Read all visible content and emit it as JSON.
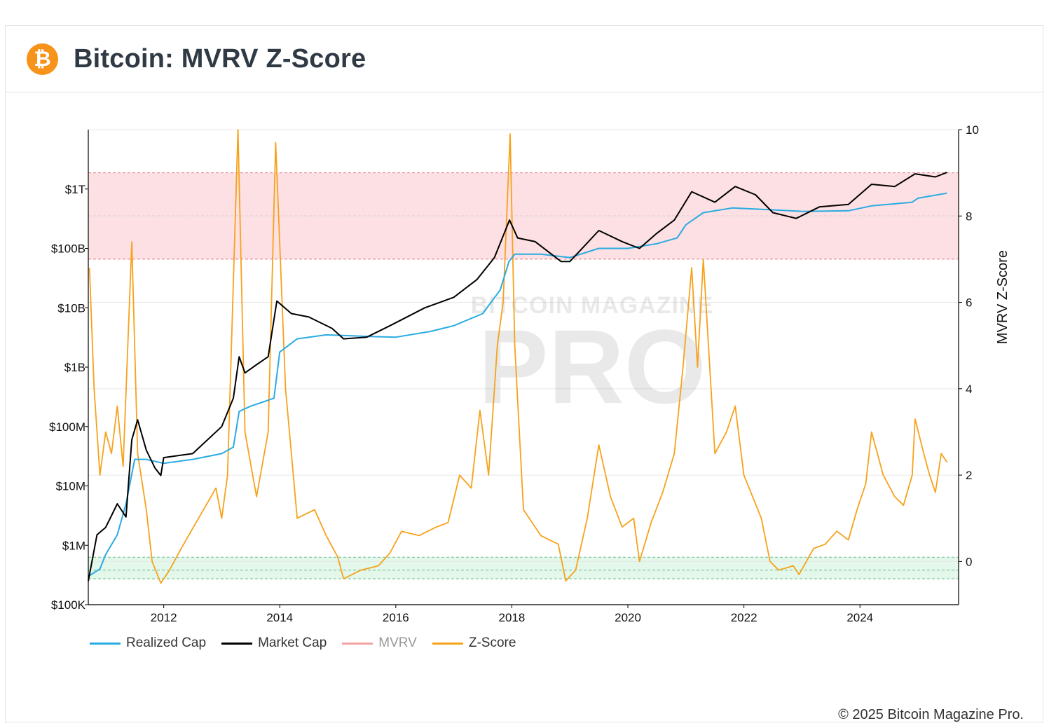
{
  "header": {
    "title": "Bitcoin: MVRV Z-Score",
    "logo_glyph": "₿",
    "logo_icon": "bitcoin-logo-icon"
  },
  "watermark": {
    "line1": "BITCOIN MAGAZINE",
    "line2": "PRO"
  },
  "footer": {
    "copyright": "© 2025 Bitcoin Magazine Pro."
  },
  "colors": {
    "realized": "#29abe2",
    "market": "#000000",
    "mvrv": "#f4a3a3",
    "zscore": "#f7a21b",
    "red_zone": "#fde0e3",
    "green_zone": "#e3f7ea",
    "accent": "#f7931a"
  },
  "chart_data": {
    "type": "line",
    "title": "Bitcoin: MVRV Z-Score",
    "xlabel": "",
    "y_left_label": "",
    "y_right_label": "MVRV Z-Score",
    "x_range": [
      2010.7,
      2025.7
    ],
    "x_ticks": [
      "2012",
      "2014",
      "2016",
      "2018",
      "2020",
      "2022",
      "2024"
    ],
    "y_left_scale": "log",
    "y_left_range": [
      100000,
      10000000000000
    ],
    "y_left_ticks": [
      {
        "label": "$100K",
        "value": 100000
      },
      {
        "label": "$1M",
        "value": 1000000
      },
      {
        "label": "$10M",
        "value": 10000000
      },
      {
        "label": "$100M",
        "value": 100000000
      },
      {
        "label": "$1B",
        "value": 1000000000
      },
      {
        "label": "$10B",
        "value": 10000000000
      },
      {
        "label": "$100B",
        "value": 100000000000
      },
      {
        "label": "$1T",
        "value": 1000000000000
      }
    ],
    "y_right_range": [
      -1,
      10
    ],
    "y_right_ticks": [
      0,
      2,
      4,
      6,
      8,
      10
    ],
    "zones": {
      "red": {
        "from": 7,
        "to": 9,
        "lines": [
          7,
          8,
          9
        ]
      },
      "green": {
        "from": -0.4,
        "to": 0.1,
        "lines": [
          -0.4,
          -0.2,
          0.1
        ]
      }
    },
    "legend": [
      "Realized Cap",
      "Market Cap",
      "MVRV",
      "Z-Score"
    ],
    "legend_placement": "bottom-left",
    "series": [
      {
        "name": "Realized Cap",
        "axis": "left",
        "points": [
          [
            2010.7,
            300000
          ],
          [
            2010.9,
            400000
          ],
          [
            2011.0,
            700000
          ],
          [
            2011.2,
            1500000
          ],
          [
            2011.35,
            5000000
          ],
          [
            2011.5,
            28000000
          ],
          [
            2011.7,
            28000000
          ],
          [
            2012.0,
            24000000
          ],
          [
            2012.5,
            28000000
          ],
          [
            2013.0,
            35000000
          ],
          [
            2013.2,
            45000000
          ],
          [
            2013.3,
            180000000
          ],
          [
            2013.5,
            220000000
          ],
          [
            2013.9,
            300000000
          ],
          [
            2014.0,
            1800000000
          ],
          [
            2014.3,
            3000000000
          ],
          [
            2014.8,
            3500000000
          ],
          [
            2015.5,
            3300000000
          ],
          [
            2016.0,
            3200000000
          ],
          [
            2016.6,
            4000000000
          ],
          [
            2017.0,
            5000000000
          ],
          [
            2017.5,
            8000000000
          ],
          [
            2017.8,
            20000000000
          ],
          [
            2017.95,
            60000000000
          ],
          [
            2018.05,
            80000000000
          ],
          [
            2018.5,
            80000000000
          ],
          [
            2019.0,
            70000000000
          ],
          [
            2019.5,
            100000000000
          ],
          [
            2020.0,
            100000000000
          ],
          [
            2020.5,
            120000000000
          ],
          [
            2020.85,
            150000000000
          ],
          [
            2021.0,
            250000000000
          ],
          [
            2021.3,
            400000000000
          ],
          [
            2021.8,
            480000000000
          ],
          [
            2022.4,
            450000000000
          ],
          [
            2023.0,
            420000000000
          ],
          [
            2023.8,
            430000000000
          ],
          [
            2024.2,
            520000000000
          ],
          [
            2024.9,
            600000000000
          ],
          [
            2025.0,
            700000000000
          ],
          [
            2025.5,
            850000000000
          ]
        ]
      },
      {
        "name": "Market Cap",
        "axis": "left",
        "points": [
          [
            2010.7,
            250000
          ],
          [
            2010.85,
            1500000
          ],
          [
            2011.0,
            2000000
          ],
          [
            2011.2,
            5000000
          ],
          [
            2011.35,
            3000000
          ],
          [
            2011.45,
            60000000
          ],
          [
            2011.55,
            130000000
          ],
          [
            2011.7,
            40000000
          ],
          [
            2011.85,
            20000000
          ],
          [
            2011.95,
            15000000
          ],
          [
            2012.0,
            30000000
          ],
          [
            2012.5,
            35000000
          ],
          [
            2013.0,
            100000000
          ],
          [
            2013.2,
            300000000
          ],
          [
            2013.3,
            1500000000
          ],
          [
            2013.4,
            800000000
          ],
          [
            2013.6,
            1100000000
          ],
          [
            2013.8,
            1500000000
          ],
          [
            2013.95,
            13000000000
          ],
          [
            2014.2,
            8000000000
          ],
          [
            2014.5,
            7000000000
          ],
          [
            2014.9,
            4500000000
          ],
          [
            2015.1,
            3000000000
          ],
          [
            2015.5,
            3200000000
          ],
          [
            2015.9,
            5000000000
          ],
          [
            2016.5,
            10000000000
          ],
          [
            2017.0,
            15000000000
          ],
          [
            2017.4,
            30000000000
          ],
          [
            2017.7,
            70000000000
          ],
          [
            2017.96,
            300000000000
          ],
          [
            2018.1,
            150000000000
          ],
          [
            2018.4,
            130000000000
          ],
          [
            2018.85,
            60000000000
          ],
          [
            2019.0,
            60000000000
          ],
          [
            2019.5,
            200000000000
          ],
          [
            2019.9,
            130000000000
          ],
          [
            2020.2,
            100000000000
          ],
          [
            2020.5,
            180000000000
          ],
          [
            2020.8,
            300000000000
          ],
          [
            2021.1,
            900000000000
          ],
          [
            2021.5,
            600000000000
          ],
          [
            2021.85,
            1100000000000
          ],
          [
            2022.2,
            800000000000
          ],
          [
            2022.5,
            400000000000
          ],
          [
            2022.9,
            320000000000
          ],
          [
            2023.3,
            500000000000
          ],
          [
            2023.8,
            550000000000
          ],
          [
            2024.2,
            1200000000000
          ],
          [
            2024.6,
            1100000000000
          ],
          [
            2024.95,
            1800000000000
          ],
          [
            2025.3,
            1600000000000
          ],
          [
            2025.5,
            1900000000000
          ]
        ]
      },
      {
        "name": "Z-Score",
        "axis": "right",
        "points": [
          [
            2010.72,
            6.8
          ],
          [
            2010.8,
            4
          ],
          [
            2010.9,
            2
          ],
          [
            2011.0,
            3
          ],
          [
            2011.1,
            2.5
          ],
          [
            2011.2,
            3.6
          ],
          [
            2011.3,
            2.2
          ],
          [
            2011.45,
            7.4
          ],
          [
            2011.55,
            2.5
          ],
          [
            2011.7,
            1.2
          ],
          [
            2011.8,
            0
          ],
          [
            2011.95,
            -0.5
          ],
          [
            2012.1,
            -0.2
          ],
          [
            2012.3,
            0.3
          ],
          [
            2012.6,
            1
          ],
          [
            2012.9,
            1.7
          ],
          [
            2013.0,
            1
          ],
          [
            2013.1,
            2
          ],
          [
            2013.28,
            10
          ],
          [
            2013.4,
            3
          ],
          [
            2013.6,
            1.5
          ],
          [
            2013.8,
            3
          ],
          [
            2013.93,
            9.7
          ],
          [
            2014.1,
            4
          ],
          [
            2014.3,
            1
          ],
          [
            2014.6,
            1.2
          ],
          [
            2014.8,
            0.6
          ],
          [
            2015.0,
            0.1
          ],
          [
            2015.1,
            -0.4
          ],
          [
            2015.4,
            -0.2
          ],
          [
            2015.7,
            -0.1
          ],
          [
            2015.9,
            0.2
          ],
          [
            2016.1,
            0.7
          ],
          [
            2016.4,
            0.6
          ],
          [
            2016.7,
            0.8
          ],
          [
            2016.9,
            0.9
          ],
          [
            2017.1,
            2
          ],
          [
            2017.3,
            1.7
          ],
          [
            2017.45,
            3.5
          ],
          [
            2017.6,
            2
          ],
          [
            2017.75,
            5
          ],
          [
            2017.85,
            6
          ],
          [
            2017.97,
            9.9
          ],
          [
            2018.05,
            5
          ],
          [
            2018.2,
            1.2
          ],
          [
            2018.5,
            0.6
          ],
          [
            2018.8,
            0.4
          ],
          [
            2018.93,
            -0.45
          ],
          [
            2019.1,
            -0.2
          ],
          [
            2019.3,
            1
          ],
          [
            2019.5,
            2.7
          ],
          [
            2019.7,
            1.5
          ],
          [
            2019.9,
            0.8
          ],
          [
            2020.1,
            1
          ],
          [
            2020.2,
            0
          ],
          [
            2020.4,
            0.9
          ],
          [
            2020.6,
            1.6
          ],
          [
            2020.8,
            2.5
          ],
          [
            2020.95,
            4.5
          ],
          [
            2021.1,
            6.8
          ],
          [
            2021.2,
            4.5
          ],
          [
            2021.3,
            7
          ],
          [
            2021.5,
            2.5
          ],
          [
            2021.7,
            3
          ],
          [
            2021.85,
            3.6
          ],
          [
            2022.0,
            2
          ],
          [
            2022.3,
            1
          ],
          [
            2022.45,
            0
          ],
          [
            2022.6,
            -0.2
          ],
          [
            2022.85,
            -0.1
          ],
          [
            2022.95,
            -0.3
          ],
          [
            2023.2,
            0.3
          ],
          [
            2023.4,
            0.4
          ],
          [
            2023.6,
            0.7
          ],
          [
            2023.8,
            0.5
          ],
          [
            2023.95,
            1.2
          ],
          [
            2024.1,
            1.8
          ],
          [
            2024.2,
            3
          ],
          [
            2024.4,
            2
          ],
          [
            2024.6,
            1.5
          ],
          [
            2024.75,
            1.3
          ],
          [
            2024.9,
            2
          ],
          [
            2024.95,
            3.3
          ],
          [
            2025.1,
            2.5
          ],
          [
            2025.2,
            2
          ],
          [
            2025.3,
            1.6
          ],
          [
            2025.4,
            2.5
          ],
          [
            2025.5,
            2.3
          ]
        ]
      }
    ]
  }
}
